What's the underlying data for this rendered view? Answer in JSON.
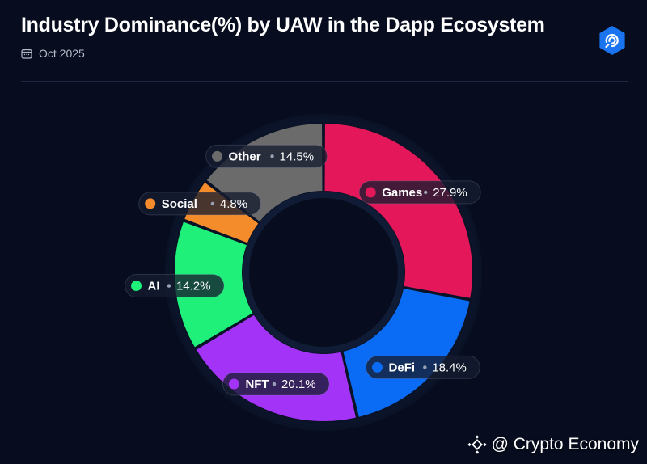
{
  "header": {
    "title": "Industry Dominance(%) by UAW in the Dapp Ecosystem",
    "date": "Oct 2025"
  },
  "icons": {
    "calendar": "calendar-icon",
    "brand": "dappradar-logo-icon",
    "watermark": "binance-logo-icon"
  },
  "watermark": {
    "text": "@ Crypto Economy"
  },
  "colors": {
    "background": "#070d1e",
    "ring": "#0f1a33"
  },
  "chart_data": {
    "type": "pie",
    "style": "donut",
    "title": "Industry Dominance(%) by UAW in the Dapp Ecosystem",
    "unit": "%",
    "series": [
      {
        "name": "Games",
        "value": 27.9,
        "label": "27.9%",
        "color": "#e3175a"
      },
      {
        "name": "DeFi",
        "value": 18.4,
        "label": "18.4%",
        "color": "#0a6cf5"
      },
      {
        "name": "NFT",
        "value": 20.1,
        "label": "20.1%",
        "color": "#a333f7"
      },
      {
        "name": "AI",
        "value": 14.2,
        "label": "14.2%",
        "color": "#1ef07a"
      },
      {
        "name": "Social",
        "value": 4.8,
        "label": "4.8%",
        "color": "#f58c2c"
      },
      {
        "name": "Other",
        "value": 14.5,
        "label": "14.5%",
        "color": "#6b6b6b"
      }
    ]
  }
}
